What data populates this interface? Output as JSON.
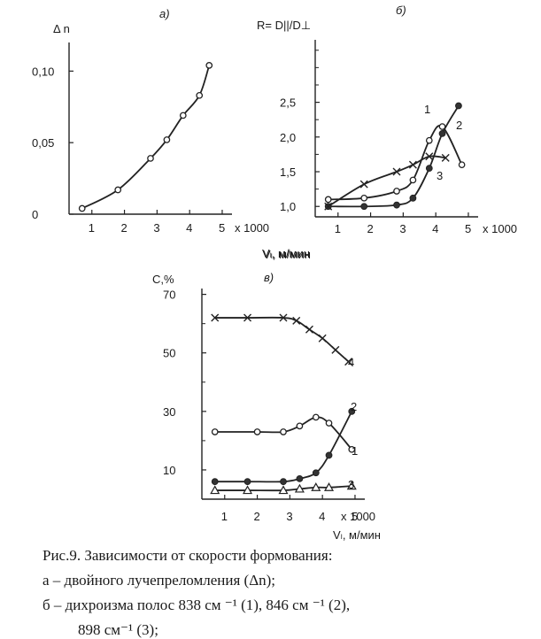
{
  "chart_data": [
    {
      "panel_label": "а)",
      "type": "line",
      "ylabel": "Δ n",
      "xlabel": "Vₗ, м/мин",
      "x_scale_note": "x 1000",
      "x_ticks": [
        1,
        2,
        3,
        4,
        5
      ],
      "y_ticks": [
        0,
        0.05,
        0.1
      ],
      "y_tick_labels": [
        "0",
        "0,05",
        "0,10"
      ],
      "xlim": [
        0.3,
        5.3
      ],
      "ylim": [
        0,
        0.12
      ],
      "series": [
        {
          "marker": "circle-open",
          "x": [
            0.7,
            1.8,
            2.8,
            3.3,
            3.8,
            4.3,
            4.6
          ],
          "y": [
            0.004,
            0.017,
            0.039,
            0.052,
            0.069,
            0.083,
            0.104
          ]
        }
      ]
    },
    {
      "panel_label": "б)",
      "type": "line",
      "ylabel": "R= D||/D⊥",
      "xlabel": "Vₗ, м/мин",
      "x_scale_note": "x 1000",
      "x_ticks": [
        1,
        2,
        3,
        4,
        5
      ],
      "y_ticks": [
        1.0,
        1.5,
        2.0,
        2.5
      ],
      "y_tick_labels": [
        "1,0",
        "1,5",
        "2,0",
        "2,5"
      ],
      "xlim": [
        0.3,
        5.3
      ],
      "ylim": [
        0.85,
        3.4
      ],
      "series": [
        {
          "name": "1",
          "marker": "circle-open",
          "x": [
            0.7,
            1.8,
            2.8,
            3.3,
            3.8,
            4.2,
            4.8
          ],
          "y": [
            1.1,
            1.12,
            1.22,
            1.38,
            1.95,
            2.15,
            1.6
          ]
        },
        {
          "name": "2",
          "marker": "circle-filled",
          "x": [
            0.7,
            1.8,
            2.8,
            3.3,
            3.8,
            4.2,
            4.7
          ],
          "y": [
            1.0,
            1.0,
            1.02,
            1.12,
            1.55,
            2.05,
            2.45
          ]
        },
        {
          "name": "3",
          "marker": "cross",
          "x": [
            0.7,
            1.8,
            2.8,
            3.3,
            3.8,
            4.3
          ],
          "y": [
            1.0,
            1.32,
            1.5,
            1.6,
            1.72,
            1.7
          ]
        }
      ]
    },
    {
      "panel_label": "в)",
      "type": "line",
      "ylabel": "С,%",
      "xlabel": "Vₗ, м/мин",
      "x_scale_note": "x 1000",
      "x_ticks": [
        1,
        2,
        3,
        4,
        5
      ],
      "y_ticks": [
        10,
        30,
        50,
        70
      ],
      "y_tick_labels": [
        "10",
        "30",
        "50",
        "70"
      ],
      "xlim": [
        0.3,
        5.3
      ],
      "ylim": [
        0,
        72
      ],
      "series": [
        {
          "name": "4",
          "marker": "cross",
          "x": [
            0.7,
            1.7,
            2.8,
            3.2,
            3.6,
            4.0,
            4.4,
            4.8
          ],
          "y": [
            62,
            62,
            62,
            61,
            58,
            55,
            51,
            47
          ]
        },
        {
          "name": "1",
          "marker": "circle-open",
          "x": [
            0.7,
            2.0,
            2.8,
            3.3,
            3.8,
            4.2,
            4.9
          ],
          "y": [
            23,
            23,
            23,
            25,
            28,
            26,
            17
          ]
        },
        {
          "name": "2",
          "marker": "circle-filled",
          "x": [
            0.7,
            1.7,
            2.8,
            3.3,
            3.8,
            4.2,
            4.9
          ],
          "y": [
            6,
            6,
            6,
            7,
            9,
            15,
            30
          ]
        },
        {
          "name": "3",
          "marker": "triangle-open",
          "x": [
            0.7,
            1.7,
            2.8,
            3.3,
            3.8,
            4.2,
            4.9
          ],
          "y": [
            3,
            3,
            3,
            3.5,
            4,
            4,
            4.5
          ]
        }
      ]
    }
  ],
  "caption": {
    "line1": "Рис.9.  Зависимости от скорости формования:",
    "line2": "а  – двойного лучепреломления  (Δn);",
    "line3": "б  – дихроизма полос 838 см ⁻¹ (1),  846 см ⁻¹  (2),",
    "line4": "898 см⁻¹  (3);"
  }
}
